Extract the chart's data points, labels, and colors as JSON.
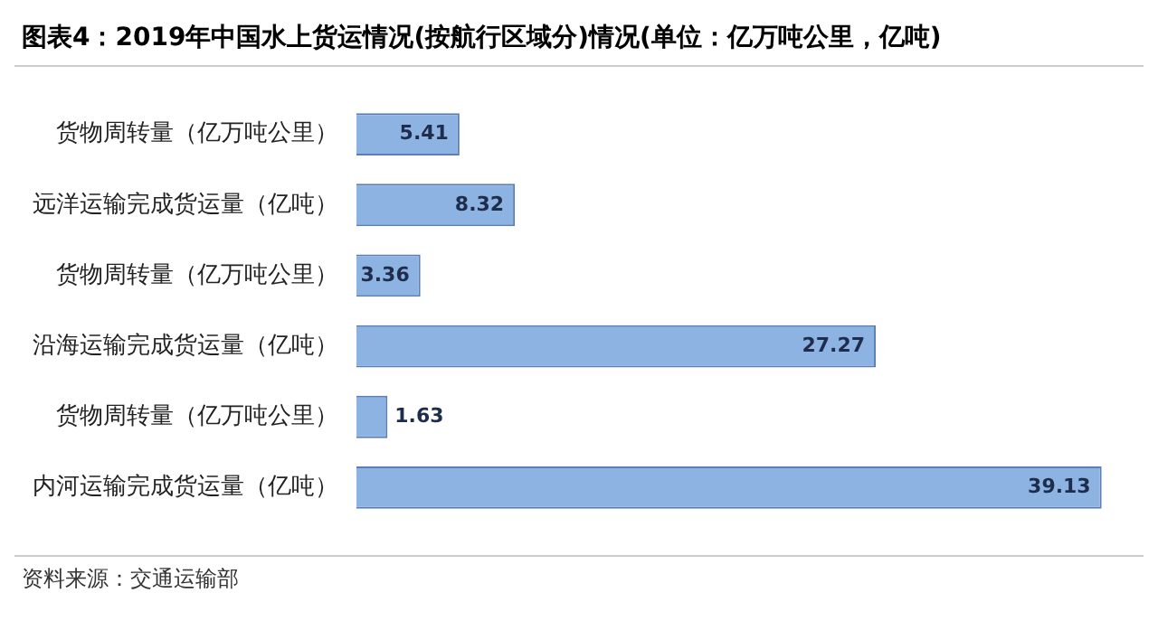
{
  "chart_data": {
    "type": "bar",
    "orientation": "horizontal",
    "title": "图表4：2019年中国水上货运情况(按航行区域分)情况(单位：亿万吨公里，亿吨)",
    "categories": [
      "货物周转量（亿万吨公里）",
      "远洋运输完成货运量（亿吨）",
      "货物周转量（亿万吨公里）",
      "沿海运输完成货运量（亿吨）",
      "货物周转量（亿万吨公里）",
      "内河运输完成货运量（亿吨）"
    ],
    "values": [
      5.41,
      8.32,
      3.36,
      27.27,
      1.63,
      39.13
    ],
    "color": "#8db3e2",
    "data_labels": true,
    "grid": false,
    "legend": false,
    "annotations": [
      "资料来源：交通运输部"
    ]
  }
}
